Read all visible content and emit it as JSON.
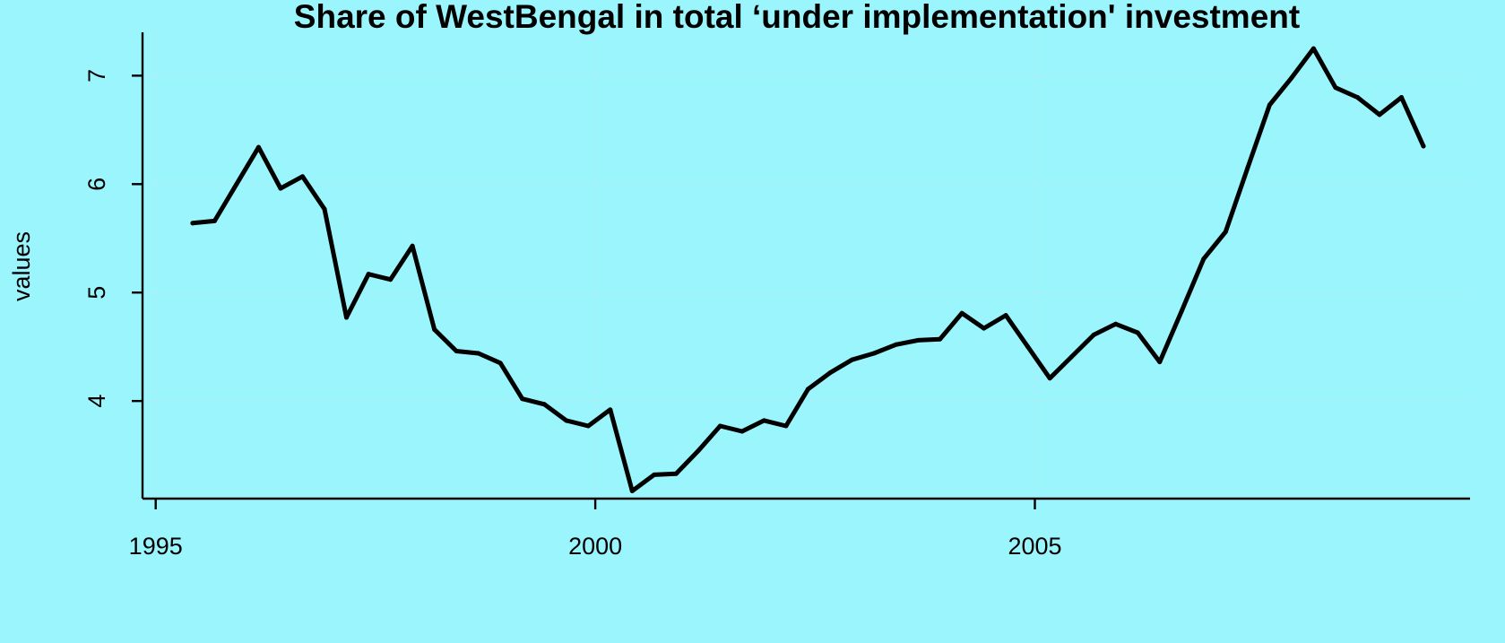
{
  "chart_data": {
    "type": "line",
    "title": "Share of WestBengal in total ‘under implementation' investment",
    "xlabel": "",
    "ylabel": "values",
    "xlim": [
      1994.85,
      2009.95
    ],
    "ylim": [
      3.1,
      7.4
    ],
    "x_ticks": [
      1995,
      2000,
      2005
    ],
    "y_ticks": [
      4,
      5,
      6,
      7
    ],
    "grid": true,
    "series": [
      {
        "color": "#000000",
        "x": [
          1995.42,
          1995.67,
          1995.92,
          1996.17,
          1996.42,
          1996.67,
          1996.92,
          1997.17,
          1997.42,
          1997.67,
          1997.92,
          1998.17,
          1998.42,
          1998.67,
          1998.92,
          1999.17,
          1999.42,
          1999.67,
          1999.92,
          2000.17,
          2000.42,
          2000.67,
          2000.92,
          2001.17,
          2001.42,
          2001.67,
          2001.92,
          2002.17,
          2002.42,
          2002.67,
          2002.92,
          2003.17,
          2003.42,
          2003.67,
          2003.92,
          2004.17,
          2004.42,
          2004.67,
          2004.92,
          2005.17,
          2005.42,
          2005.67,
          2005.92,
          2006.17,
          2006.42,
          2006.67,
          2006.92,
          2007.17,
          2007.42,
          2007.67,
          2007.92,
          2008.17,
          2008.42,
          2008.67,
          2008.92,
          2009.17,
          2009.42
        ],
        "values": [
          5.64,
          5.66,
          6.0,
          6.34,
          5.96,
          6.07,
          5.77,
          4.77,
          5.17,
          5.12,
          5.43,
          4.66,
          4.46,
          4.44,
          4.35,
          4.02,
          3.97,
          3.82,
          3.77,
          3.92,
          3.17,
          3.32,
          3.33,
          3.54,
          3.77,
          3.72,
          3.82,
          3.77,
          4.11,
          4.26,
          4.38,
          4.44,
          4.52,
          4.56,
          4.57,
          4.81,
          4.67,
          4.79,
          4.5,
          4.21,
          4.41,
          4.61,
          4.71,
          4.63,
          4.36,
          4.83,
          5.31,
          5.56,
          6.15,
          6.73,
          6.98,
          7.25,
          6.89,
          6.8,
          6.64,
          6.8,
          6.35
        ]
      }
    ],
    "colors": {
      "background": "#9BF5FD",
      "line": "#000000",
      "grid": "#D8DDE0"
    }
  }
}
